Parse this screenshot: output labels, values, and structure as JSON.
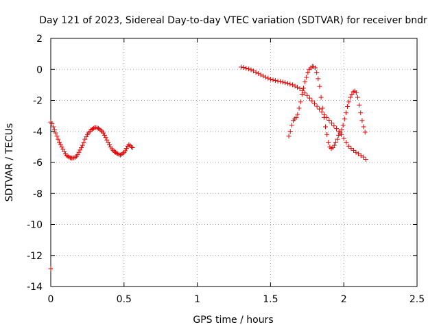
{
  "chart_data": {
    "type": "scatter",
    "title": "Day 121 of 2023, Sidereal Day-to-day VTEC variation (SDTVAR) for receiver bndr",
    "xlabel": "GPS time / hours",
    "ylabel": "SDTVAR / TECUs",
    "xlim": [
      0,
      2.5
    ],
    "ylim": [
      -14,
      2
    ],
    "x_ticks": [
      "0",
      "0.5",
      "1",
      "1.5",
      "2",
      "2.5"
    ],
    "x_tick_values": [
      0,
      0.5,
      1,
      1.5,
      2,
      2.5
    ],
    "y_ticks": [
      "2",
      "0",
      "-2",
      "-4",
      "-6",
      "-8",
      "-10",
      "-12",
      "-14"
    ],
    "y_tick_values": [
      2,
      0,
      -2,
      -4,
      -6,
      -8,
      -10,
      -12,
      -14
    ],
    "grid": true,
    "marker": "+",
    "color": "#e00000",
    "series": [
      {
        "name": "segment-1",
        "x": [
          0.0,
          0.008,
          0.017,
          0.025,
          0.033,
          0.042,
          0.05,
          0.058,
          0.067,
          0.075,
          0.083,
          0.092,
          0.1,
          0.108,
          0.117,
          0.125,
          0.133,
          0.142,
          0.15,
          0.158,
          0.167,
          0.175,
          0.183,
          0.192,
          0.2,
          0.208,
          0.217,
          0.225,
          0.233,
          0.242,
          0.25,
          0.258,
          0.267,
          0.275,
          0.283,
          0.292,
          0.3,
          0.308,
          0.317,
          0.325,
          0.333,
          0.342,
          0.35,
          0.358,
          0.367,
          0.375,
          0.383,
          0.392,
          0.4,
          0.408,
          0.417,
          0.425,
          0.433,
          0.442,
          0.45,
          0.458,
          0.467,
          0.475,
          0.483,
          0.492,
          0.5,
          0.508,
          0.517,
          0.525,
          0.533,
          0.542,
          0.55,
          0.558
        ],
        "values": [
          -3.4,
          -3.5,
          -3.7,
          -3.9,
          -4.1,
          -4.3,
          -4.5,
          -4.7,
          -4.85,
          -5.0,
          -5.15,
          -5.3,
          -5.45,
          -5.55,
          -5.6,
          -5.65,
          -5.7,
          -5.72,
          -5.72,
          -5.7,
          -5.68,
          -5.6,
          -5.5,
          -5.35,
          -5.2,
          -5.05,
          -4.9,
          -4.7,
          -4.5,
          -4.35,
          -4.2,
          -4.1,
          -4.0,
          -3.9,
          -3.85,
          -3.8,
          -3.75,
          -3.75,
          -3.78,
          -3.8,
          -3.85,
          -3.92,
          -4.0,
          -4.1,
          -4.25,
          -4.4,
          -4.55,
          -4.7,
          -4.85,
          -5.0,
          -5.12,
          -5.22,
          -5.3,
          -5.35,
          -5.4,
          -5.45,
          -5.5,
          -5.52,
          -5.48,
          -5.42,
          -5.35,
          -5.25,
          -5.1,
          -4.95,
          -4.85,
          -4.9,
          -5.0,
          -5.05
        ]
      },
      {
        "name": "outlier",
        "x": [
          0.0
        ],
        "values": [
          -12.85
        ]
      },
      {
        "name": "segment-2-declining",
        "x": [
          1.3,
          1.317,
          1.333,
          1.35,
          1.367,
          1.383,
          1.4,
          1.417,
          1.433,
          1.45,
          1.467,
          1.483,
          1.5,
          1.517,
          1.533,
          1.55,
          1.567,
          1.583,
          1.6,
          1.617,
          1.633,
          1.65,
          1.667,
          1.683,
          1.7,
          1.717,
          1.733,
          1.75,
          1.767,
          1.783,
          1.8,
          1.817,
          1.833,
          1.85,
          1.867,
          1.883,
          1.9,
          1.917,
          1.933,
          1.95,
          1.967,
          1.983,
          2.0,
          2.017,
          2.033,
          2.05,
          2.067,
          2.083,
          2.1,
          2.117,
          2.133,
          2.15
        ],
        "values": [
          0.15,
          0.12,
          0.08,
          0.03,
          -0.03,
          -0.1,
          -0.18,
          -0.27,
          -0.35,
          -0.43,
          -0.5,
          -0.57,
          -0.63,
          -0.68,
          -0.72,
          -0.75,
          -0.78,
          -0.82,
          -0.86,
          -0.9,
          -0.95,
          -1.0,
          -1.07,
          -1.15,
          -1.25,
          -1.38,
          -1.52,
          -1.68,
          -1.85,
          -2.03,
          -2.2,
          -2.38,
          -2.56,
          -2.74,
          -2.92,
          -3.1,
          -3.28,
          -3.46,
          -3.64,
          -3.82,
          -4.0,
          -4.2,
          -4.45,
          -4.7,
          -4.95,
          -5.1,
          -5.22,
          -5.35,
          -5.45,
          -5.55,
          -5.65,
          -5.8
        ]
      },
      {
        "name": "segment-3-oscillating",
        "x": [
          1.625,
          1.635,
          1.645,
          1.655,
          1.665,
          1.675,
          1.685,
          1.695,
          1.705,
          1.715,
          1.725,
          1.735,
          1.745,
          1.755,
          1.765,
          1.775,
          1.785,
          1.795,
          1.805,
          1.815,
          1.825,
          1.835,
          1.845,
          1.855,
          1.865,
          1.875,
          1.885,
          1.895,
          1.905,
          1.915,
          1.925,
          1.935,
          1.945,
          1.955,
          1.965,
          1.975,
          1.985,
          1.995,
          2.005,
          2.015,
          2.025,
          2.035,
          2.045,
          2.055,
          2.065,
          2.075,
          2.085,
          2.095,
          2.105,
          2.115,
          2.125,
          2.135,
          2.145
        ],
        "values": [
          -4.3,
          -4.0,
          -3.6,
          -3.3,
          -3.2,
          -3.1,
          -2.9,
          -2.5,
          -2.1,
          -1.6,
          -1.2,
          -0.8,
          -0.5,
          -0.2,
          0.0,
          0.1,
          0.2,
          0.18,
          0.1,
          -0.2,
          -0.6,
          -1.1,
          -1.8,
          -2.5,
          -3.1,
          -3.7,
          -4.2,
          -4.7,
          -5.0,
          -5.1,
          -5.05,
          -4.9,
          -4.7,
          -4.5,
          -4.25,
          -4.1,
          -3.9,
          -3.6,
          -3.2,
          -2.8,
          -2.4,
          -2.1,
          -1.8,
          -1.6,
          -1.45,
          -1.4,
          -1.5,
          -1.8,
          -2.3,
          -2.8,
          -3.3,
          -3.7,
          -4.05
        ]
      }
    ]
  }
}
